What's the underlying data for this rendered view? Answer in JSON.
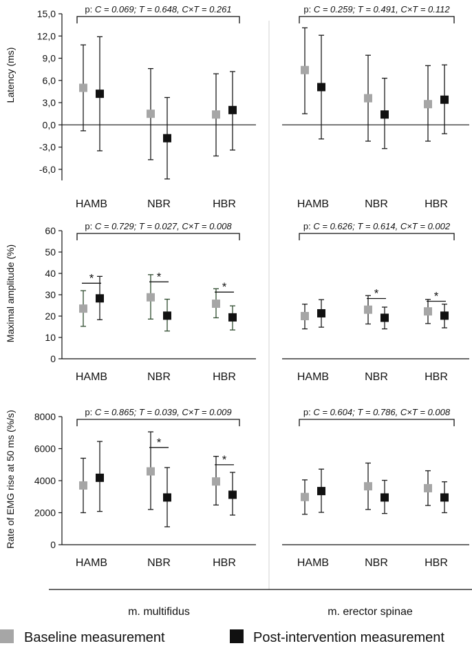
{
  "figure": {
    "columns": [
      "m. multifidus",
      "m. erector spinae"
    ],
    "colors": {
      "baseline": "#a6a6a6",
      "post": "#111111",
      "axis": "#111111",
      "divider": "#d0d0d0",
      "whisker_dark": "#1a1a1a",
      "whisker_green": "#2e4a2e"
    },
    "legend": [
      {
        "label": "Baseline measurement",
        "color": "#a6a6a6"
      },
      {
        "label": "Post-intervention measurement",
        "color": "#111111"
      }
    ]
  },
  "chart_data": [
    {
      "type": "scatter",
      "title": "Latency – m. multifidus",
      "ylabel": "Latency (ms)",
      "categories": [
        "HAMB",
        "NBR",
        "HBR"
      ],
      "ylim": [
        -7.5,
        15
      ],
      "yticks": [
        "-6,0",
        "-3,0",
        "0,0",
        "3,0",
        "6,0",
        "9,0",
        "12,0",
        "15,0"
      ],
      "ytick_values": [
        -6,
        -3,
        0,
        3,
        6,
        9,
        12,
        15
      ],
      "p_prefix": "p:",
      "p_text": "C = 0.069; T = 0.648, C×T = 0.261",
      "series": [
        {
          "name": "Baseline measurement",
          "means": [
            5.0,
            1.5,
            1.4
          ],
          "lower": [
            -0.8,
            -4.7,
            -4.2
          ],
          "upper": [
            10.8,
            7.6,
            6.9
          ]
        },
        {
          "name": "Post-intervention measurement",
          "means": [
            4.2,
            -1.8,
            2.0
          ],
          "lower": [
            -3.5,
            -7.3,
            -3.4
          ],
          "upper": [
            11.9,
            3.7,
            7.2
          ]
        }
      ],
      "significant": [
        false,
        false,
        false
      ]
    },
    {
      "type": "scatter",
      "title": "Latency – m. erector spinae",
      "categories": [
        "HAMB",
        "NBR",
        "HBR"
      ],
      "ylim": [
        -7.5,
        15
      ],
      "p_prefix": "p:",
      "p_text": "C = 0.259; T = 0.491, C×T = 0.112",
      "series": [
        {
          "name": "Baseline measurement",
          "means": [
            7.4,
            3.6,
            2.8
          ],
          "lower": [
            1.5,
            -2.2,
            -2.2
          ],
          "upper": [
            13.1,
            9.4,
            8.0
          ]
        },
        {
          "name": "Post-intervention measurement",
          "means": [
            5.1,
            1.4,
            3.4
          ],
          "lower": [
            -1.9,
            -3.2,
            -1.2
          ],
          "upper": [
            12.1,
            6.3,
            8.1
          ]
        }
      ],
      "significant": [
        false,
        false,
        false
      ]
    },
    {
      "type": "scatter",
      "title": "Maximal amplitude – m. multifidus",
      "ylabel": "Maximal amplitude (%)",
      "categories": [
        "HAMB",
        "NBR",
        "HBR"
      ],
      "ylim": [
        0,
        60
      ],
      "yticks": [
        "0",
        "10",
        "20",
        "30",
        "40",
        "50",
        "60"
      ],
      "ytick_values": [
        0,
        10,
        20,
        30,
        40,
        50,
        60
      ],
      "p_prefix": "p:",
      "p_text": "C = 0.729; T = 0.027, C×T = 0.008",
      "series": [
        {
          "name": "Baseline measurement",
          "means": [
            23.5,
            28.8,
            25.8
          ],
          "lower": [
            15.2,
            18.6,
            19.2
          ],
          "upper": [
            31.9,
            39.4,
            32.8
          ]
        },
        {
          "name": "Post-intervention measurement",
          "means": [
            28.3,
            20.2,
            19.4
          ],
          "lower": [
            18.3,
            13.0,
            13.5
          ],
          "upper": [
            38.6,
            27.9,
            24.8
          ]
        }
      ],
      "significant": [
        true,
        true,
        true
      ],
      "star": "*"
    },
    {
      "type": "scatter",
      "title": "Maximal amplitude – m. erector spinae",
      "categories": [
        "HAMB",
        "NBR",
        "HBR"
      ],
      "ylim": [
        0,
        60
      ],
      "p_prefix": "p:",
      "p_text": "C = 0.626; T = 0.614, C×T = 0.002",
      "series": [
        {
          "name": "Baseline measurement",
          "means": [
            20.0,
            23.0,
            22.2
          ],
          "lower": [
            14.0,
            16.3,
            16.5
          ],
          "upper": [
            25.6,
            29.6,
            27.8
          ]
        },
        {
          "name": "Post-intervention measurement",
          "means": [
            21.3,
            19.2,
            20.2
          ],
          "lower": [
            14.8,
            14.0,
            14.5
          ],
          "upper": [
            27.7,
            24.2,
            25.6
          ]
        }
      ],
      "significant": [
        false,
        true,
        true
      ],
      "star": "*"
    },
    {
      "type": "scatter",
      "title": "Rate of EMG rise – m. multifidus",
      "ylabel": "Rate of EMG rise at 50 ms (%/s)",
      "categories": [
        "HAMB",
        "NBR",
        "HBR"
      ],
      "ylim": [
        0,
        8000
      ],
      "yticks": [
        "0",
        "2000",
        "4000",
        "6000",
        "8000"
      ],
      "ytick_values": [
        0,
        2000,
        4000,
        6000,
        8000
      ],
      "p_prefix": "p:",
      "p_text": "C = 0.865; T = 0.039, C×T = 0.009",
      "series": [
        {
          "name": "Baseline measurement",
          "means": [
            3700,
            4580,
            3950
          ],
          "lower": [
            2000,
            2200,
            2480
          ],
          "upper": [
            5400,
            7050,
            5520
          ]
        },
        {
          "name": "Post-intervention measurement",
          "means": [
            4180,
            2950,
            3120
          ],
          "lower": [
            2080,
            1120,
            1850
          ],
          "upper": [
            6450,
            4820,
            4520
          ]
        }
      ],
      "significant": [
        false,
        true,
        true
      ],
      "star": "*"
    },
    {
      "type": "scatter",
      "title": "Rate of EMG rise – m. erector spinae",
      "categories": [
        "HAMB",
        "NBR",
        "HBR"
      ],
      "ylim": [
        0,
        8000
      ],
      "p_prefix": "p:",
      "p_text": "C = 0.604; T = 0.786, C×T = 0.008",
      "series": [
        {
          "name": "Baseline measurement",
          "means": [
            2980,
            3650,
            3530
          ],
          "lower": [
            1900,
            2200,
            2450
          ],
          "upper": [
            4050,
            5100,
            4620
          ]
        },
        {
          "name": "Post-intervention measurement",
          "means": [
            3350,
            2950,
            2950
          ],
          "lower": [
            2020,
            1950,
            2000
          ],
          "upper": [
            4720,
            4020,
            3930
          ]
        }
      ],
      "significant": [
        false,
        false,
        false
      ],
      "star": "*"
    }
  ]
}
